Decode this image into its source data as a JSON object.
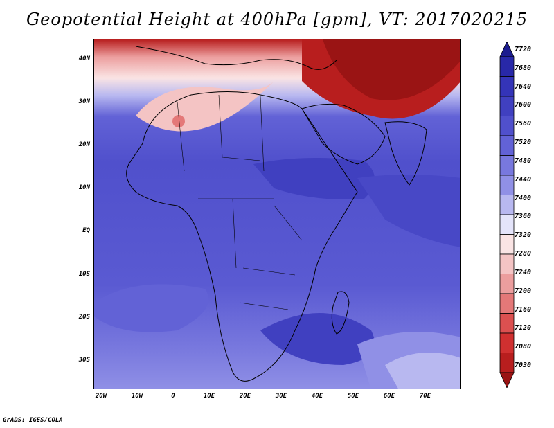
{
  "title": "Geopotential Height at 400hPa [gpm], VT: 2017020215",
  "lat_labels": [
    "40N",
    "30N",
    "20N",
    "10N",
    "EQ",
    "10S",
    "20S",
    "30S"
  ],
  "lon_labels": [
    "20W",
    "10W",
    "0",
    "10E",
    "20E",
    "30E",
    "40E",
    "50E",
    "60E",
    "70E"
  ],
  "colorbar": {
    "labels": [
      "7720",
      "7680",
      "7640",
      "7600",
      "7560",
      "7520",
      "7480",
      "7440",
      "7400",
      "7360",
      "7320",
      "7280",
      "7240",
      "7200",
      "7160",
      "7120",
      "7080",
      "7030"
    ],
    "colors": [
      "#1c1c8f",
      "#2828a8",
      "#3434b8",
      "#4040c0",
      "#5050cc",
      "#6262d6",
      "#7878de",
      "#9090e6",
      "#b8b8f0",
      "#e4e4fa",
      "#fae4e4",
      "#f4c4c4",
      "#ec9e9e",
      "#e47878",
      "#dc5050",
      "#d03030",
      "#b81e1e",
      "#9a1414"
    ]
  },
  "credit": "GrADS: IGES/COLA"
}
